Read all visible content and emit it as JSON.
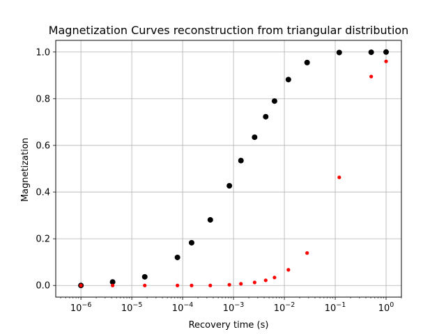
{
  "chart_data": {
    "type": "scatter",
    "title": "Magnetization Curves reconstruction from triangular distribution",
    "xlabel": "Recovery time (s)",
    "ylabel": "Magnetization",
    "x_scale": "log",
    "xlim": [
      3.2e-07,
      2.0
    ],
    "ylim": [
      -0.05,
      1.05
    ],
    "x_ticks": [
      {
        "value": 1e-06,
        "base": "10",
        "exp": "−6"
      },
      {
        "value": 1e-05,
        "base": "10",
        "exp": "−5"
      },
      {
        "value": 0.0001,
        "base": "10",
        "exp": "−4"
      },
      {
        "value": 0.001,
        "base": "10",
        "exp": "−3"
      },
      {
        "value": 0.01,
        "base": "10",
        "exp": "−2"
      },
      {
        "value": 0.1,
        "base": "10",
        "exp": "−1"
      },
      {
        "value": 1,
        "base": "10",
        "exp": "0"
      }
    ],
    "y_ticks": [
      {
        "value": 0.0,
        "label": "0.0"
      },
      {
        "value": 0.2,
        "label": "0.2"
      },
      {
        "value": 0.4,
        "label": "0.4"
      },
      {
        "value": 0.6,
        "label": "0.6"
      },
      {
        "value": 0.8,
        "label": "0.8"
      },
      {
        "value": 1.0,
        "label": "1.0"
      }
    ],
    "grid": true,
    "series": [
      {
        "color": "#000000",
        "marker": "large-dot",
        "x": [
          1e-06,
          4.2e-06,
          1.8e-05,
          7.9e-05,
          0.00015,
          0.00035,
          0.00083,
          0.0014,
          0.0026,
          0.0043,
          0.0064,
          0.012,
          0.028,
          0.12,
          0.51,
          1.0
        ],
        "y": [
          0.0,
          0.015,
          0.037,
          0.12,
          0.183,
          0.281,
          0.427,
          0.535,
          0.635,
          0.723,
          0.79,
          0.882,
          0.955,
          0.998,
          0.999,
          1.0
        ]
      },
      {
        "color": "#ff0000",
        "marker": "small-dot",
        "x": [
          1e-06,
          4.2e-06,
          1.8e-05,
          7.9e-05,
          0.00015,
          0.00035,
          0.00083,
          0.0014,
          0.0026,
          0.0043,
          0.0064,
          0.012,
          0.028,
          0.12,
          0.51,
          1.0
        ],
        "y": [
          0.0,
          0.0,
          0.0,
          0.0,
          0.0,
          0.0,
          0.003,
          0.007,
          0.013,
          0.022,
          0.034,
          0.067,
          0.139,
          0.463,
          0.895,
          0.96
        ]
      }
    ]
  }
}
